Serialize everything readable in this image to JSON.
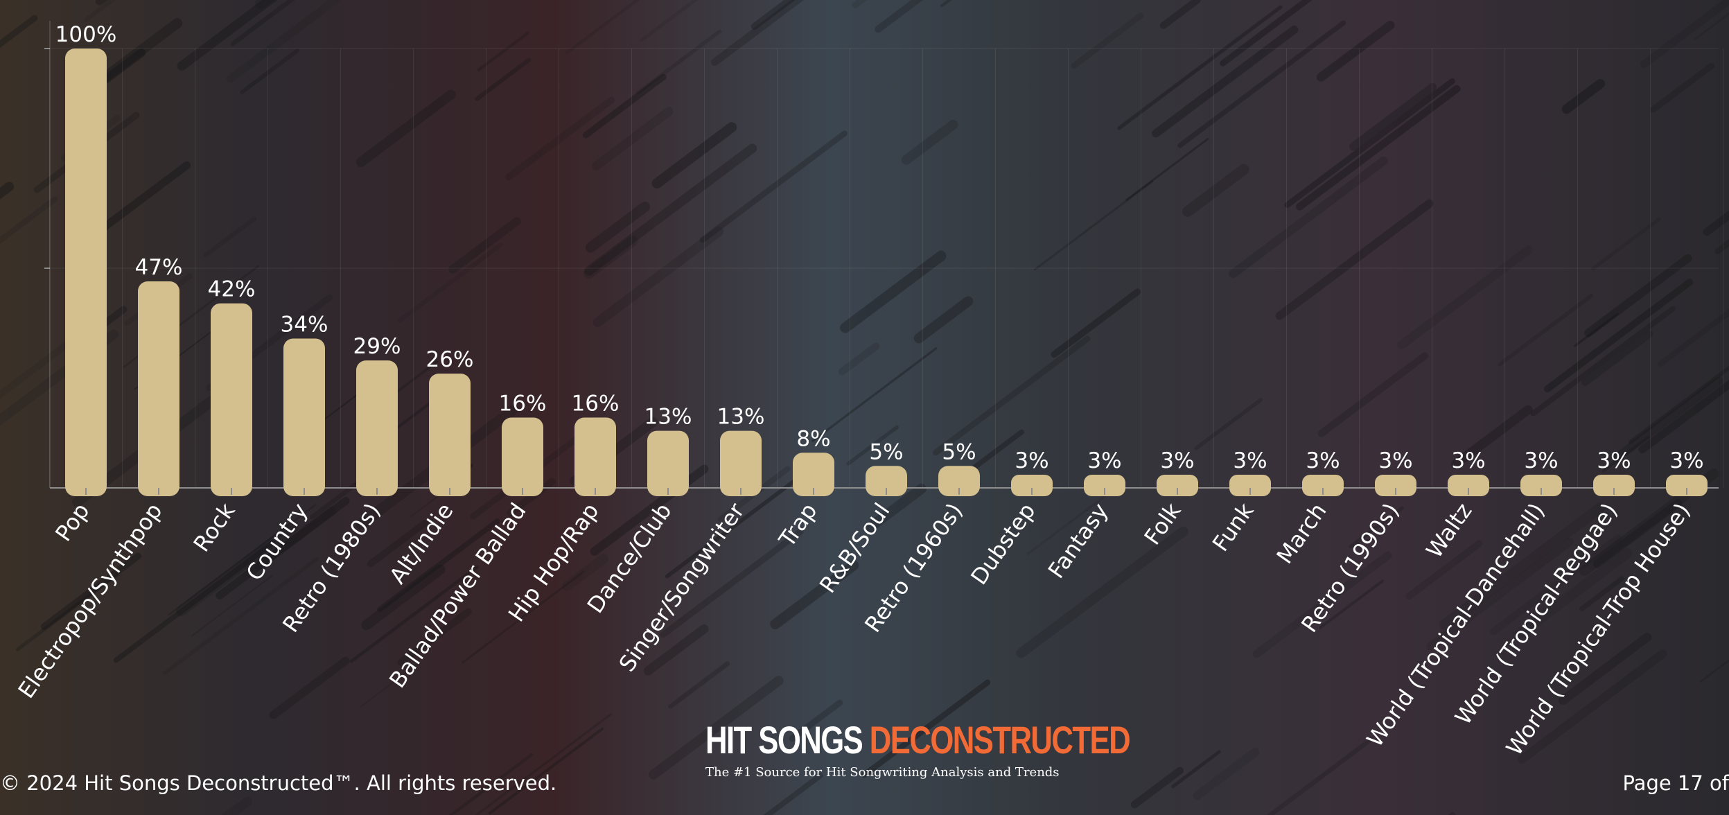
{
  "chart_data": {
    "type": "bar",
    "categories": [
      "Pop",
      "Electropop/Synthpop",
      "Rock",
      "Country",
      "Retro (1980s)",
      "Alt/Indie",
      "Ballad/Power Ballad",
      "Hip Hop/Rap",
      "Dance/Club",
      "Singer/Songwriter",
      "Trap",
      "R&B/Soul",
      "Retro (1960s)",
      "Dubstep",
      "Fantasy",
      "Folk",
      "Funk",
      "March",
      "Retro (1990s)",
      "Waltz",
      "World (Tropical-Dancehall)",
      "World (Tropical-Reggae)",
      "World (Tropical-Trop House)"
    ],
    "values": [
      100,
      47,
      42,
      34,
      29,
      26,
      16,
      16,
      13,
      13,
      8,
      5,
      5,
      3,
      3,
      3,
      3,
      3,
      3,
      3,
      3,
      3,
      3
    ],
    "value_labels": [
      "100%",
      "47%",
      "42%",
      "34%",
      "29%",
      "26%",
      "16%",
      "16%",
      "13%",
      "13%",
      "8%",
      "5%",
      "5%",
      "3%",
      "3%",
      "3%",
      "3%",
      "3%",
      "3%",
      "3%",
      "3%",
      "3%",
      "3%"
    ],
    "ylim": [
      0,
      100
    ],
    "grid": true,
    "title": "",
    "xlabel": "",
    "ylabel": ""
  },
  "colors": {
    "bar": "#d4c08e",
    "text": "#ffffff",
    "accent": "#f26a36"
  },
  "footer": {
    "copyright": "© 2024 Hit Songs Deconstructed™. All rights reserved.",
    "page": "Page 17 of"
  },
  "brand": {
    "name_part1": "HIT SONGS ",
    "name_part2": "DECONSTRUCTED",
    "tagline": "The #1 Source for Hit Songwriting Analysis and Trends"
  }
}
